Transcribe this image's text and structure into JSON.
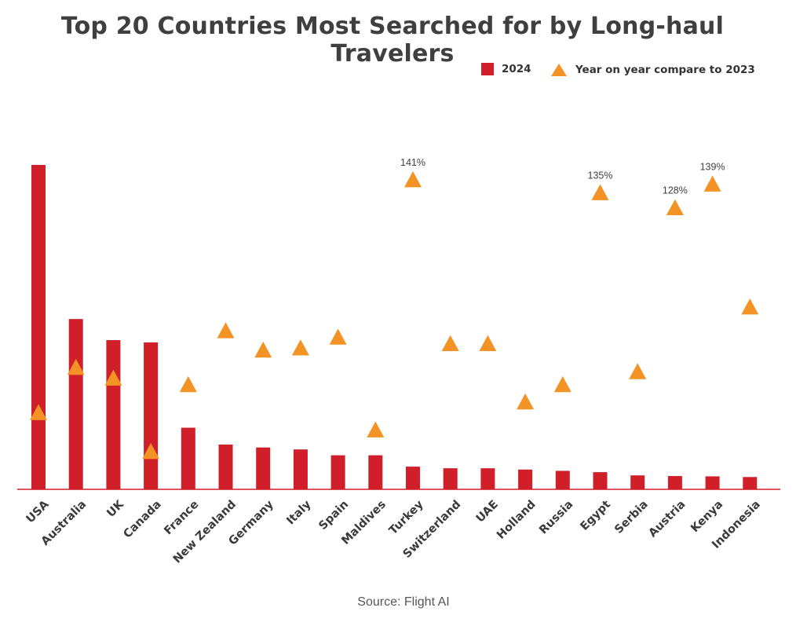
{
  "chart_data": {
    "type": "bar",
    "title": "Top 20 Countries Most Searched for by Long-haul Travelers",
    "categories": [
      "USA",
      "Australia",
      "UK",
      "Canada",
      "France",
      "New Zealand",
      "Germany",
      "Italy",
      "Spain",
      "Maldives",
      "Turkey",
      "Switzerland",
      "UAE",
      "Holland",
      "Russia",
      "Egypt",
      "Serbia",
      "Austria",
      "Kenya",
      "Indonesia"
    ],
    "series": [
      {
        "name": "2024",
        "type": "bar",
        "color": "#d11f2a",
        "values": [
          100,
          52.5,
          46,
          45.3,
          19,
          13.8,
          12.9,
          12.3,
          10.5,
          10.5,
          7,
          6.5,
          6.5,
          6.1,
          5.7,
          5.3,
          4.3,
          4.1,
          4,
          3.8
        ]
      },
      {
        "name": "Year on year compare to 2023",
        "type": "scatter",
        "marker": "triangle",
        "color": "#f39325",
        "values": [
          33,
          54,
          49,
          15,
          46,
          71,
          62,
          63,
          68,
          25,
          141,
          65,
          65,
          38,
          46,
          135,
          52,
          128,
          139,
          82
        ],
        "data_labels": [
          "",
          "",
          "",
          "",
          "",
          "",
          "",
          "",
          "",
          "",
          "141%",
          "",
          "",
          "",
          "",
          "135%",
          "",
          "128%",
          "139%",
          ""
        ]
      }
    ],
    "legend_position": "top-right",
    "grid": false
  },
  "source": "Source: Flight AI"
}
